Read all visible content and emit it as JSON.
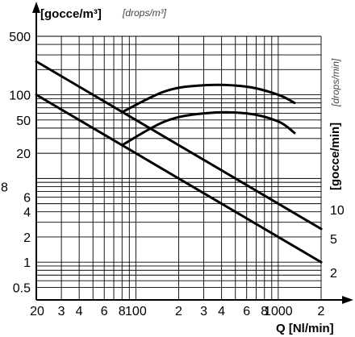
{
  "chart_data": {
    "type": "line",
    "x_scale": "log",
    "y_scale": "log",
    "xlim": [
      20,
      2000
    ],
    "ylim": [
      0.5,
      500
    ],
    "grid": true,
    "x_tick_values": [
      20,
      30,
      40,
      60,
      80,
      100,
      200,
      300,
      400,
      600,
      800,
      1000,
      2000
    ],
    "x_tick_labels": [
      "20",
      "3",
      "4",
      "6",
      "8",
      "100",
      "2",
      "3",
      "4",
      "6",
      "8",
      "1000",
      "2"
    ],
    "y_tick_values": [
      0.5,
      1,
      2,
      4,
      6,
      8,
      20,
      50,
      100,
      500
    ],
    "y_tick_labels": [
      "0.5",
      "1",
      "2",
      "4",
      "6",
      "8",
      "20",
      "50",
      "100",
      "500"
    ],
    "x_label": "Q [Nl/min]",
    "y_label": "[gocce/m³]",
    "y_label_alt": "[drops/m³]",
    "y2_label": "[gocce/min]",
    "y2_label_alt": "[drops/min]",
    "y2_tick_labels": [
      "10",
      "5",
      "2"
    ],
    "series": [
      {
        "x": [
          20,
          2000
        ],
        "y": [
          250,
          2.5
        ]
      },
      {
        "x": [
          20,
          2000
        ],
        "y": [
          100,
          1
        ]
      },
      {
        "x": [
          80,
          160,
          300,
          600,
          1000,
          1300
        ],
        "y": [
          62,
          110,
          130,
          125,
          100,
          80
        ]
      },
      {
        "x": [
          80,
          160,
          300,
          600,
          1000,
          1300
        ],
        "y": [
          25,
          48,
          60,
          60,
          48,
          35
        ]
      }
    ]
  }
}
